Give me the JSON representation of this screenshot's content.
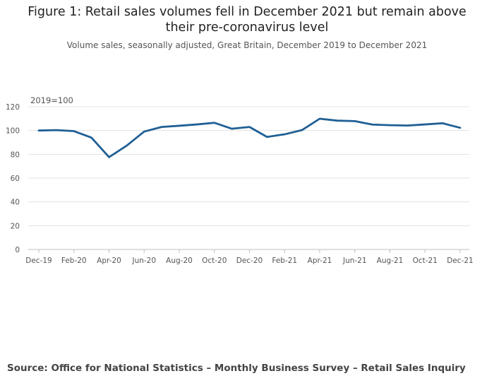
{
  "chart_data": {
    "type": "line",
    "title": "Figure 1: Retail sales volumes fell in December 2021 but remain above their pre-coronavirus level",
    "subtitle": "Volume sales, seasonally adjusted, Great Britain, December 2019 to December 2021",
    "unit_label": "2019=100",
    "xlabel": "",
    "ylabel": "",
    "ylim": [
      0,
      120
    ],
    "yticks": [
      0,
      20,
      40,
      60,
      80,
      100,
      120
    ],
    "x": [
      "Dec-19",
      "Jan-20",
      "Feb-20",
      "Mar-20",
      "Apr-20",
      "May-20",
      "Jun-20",
      "Jul-20",
      "Aug-20",
      "Sep-20",
      "Oct-20",
      "Nov-20",
      "Dec-20",
      "Jan-21",
      "Feb-21",
      "Mar-21",
      "Apr-21",
      "May-21",
      "Jun-21",
      "Jul-21",
      "Aug-21",
      "Sep-21",
      "Oct-21",
      "Nov-21",
      "Dec-21"
    ],
    "xtick_labels": [
      "Dec-19",
      "Feb-20",
      "Apr-20",
      "Jun-20",
      "Aug-20",
      "Oct-20",
      "Dec-20",
      "Feb-21",
      "Apr-21",
      "Jun-21",
      "Aug-21",
      "Oct-21",
      "Dec-21"
    ],
    "series": [
      {
        "name": "Retail sales volume index",
        "color": "#206095",
        "values": [
          100.0,
          100.3,
          99.5,
          94.0,
          77.6,
          87.2,
          99.1,
          103.0,
          104.0,
          105.1,
          106.5,
          101.5,
          103.0,
          94.6,
          96.8,
          100.4,
          109.9,
          108.3,
          107.9,
          105.0,
          104.5,
          104.2,
          105.1,
          106.1,
          102.3
        ]
      }
    ],
    "grid": true
  },
  "source": "Source: Office for National Statistics – Monthly Business Survey – Retail Sales Inquiry"
}
